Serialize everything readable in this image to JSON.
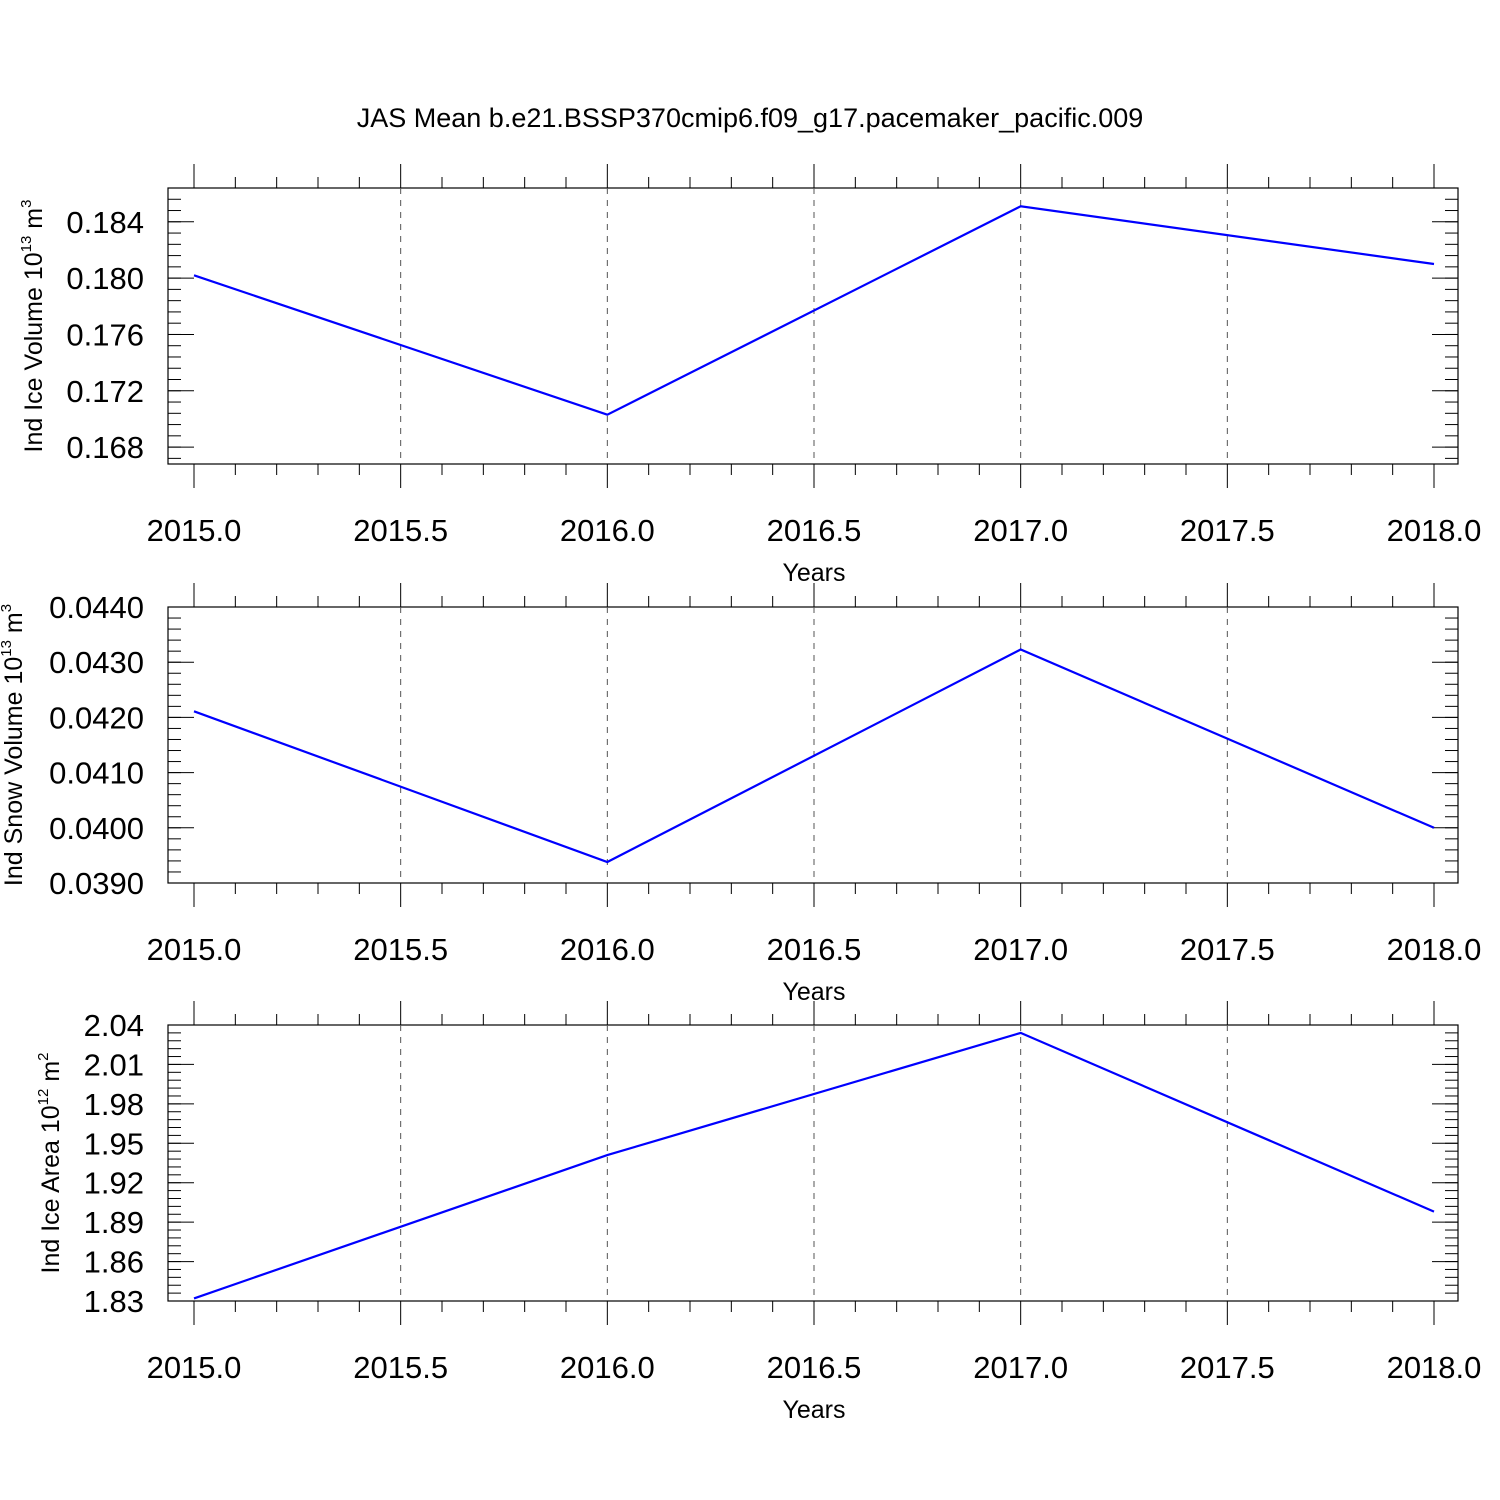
{
  "title": "JAS Mean b.e21.BSSP370cmip6.f09_g17.pacemaker_pacific.009",
  "colors": {
    "line": "#0000ff",
    "axis": "#000000",
    "grid": "#555555"
  },
  "chart_data": [
    {
      "type": "line",
      "xlabel": "Years",
      "ylabel": {
        "text": "Ind Ice Volume 10",
        "sup": "13",
        "unit": " m",
        "unit_sup": "3"
      },
      "x": [
        2015,
        2016,
        2017,
        2018
      ],
      "series": [
        {
          "values": [
            0.1802,
            0.1703,
            0.1851,
            0.181
          ]
        }
      ],
      "xlim": [
        2015,
        2018
      ],
      "ylim": [
        0.1668,
        0.1864
      ],
      "xticks": [
        "2015.0",
        "2015.5",
        "2016.0",
        "2016.5",
        "2017.0",
        "2017.5",
        "2018.0"
      ],
      "yticks": [
        "0.168",
        "0.172",
        "0.176",
        "0.180",
        "0.184"
      ],
      "grid": "vertical dashed"
    },
    {
      "type": "line",
      "xlabel": "Years",
      "ylabel": {
        "text": "Ind Snow Volume 10",
        "sup": "13",
        "unit": " m",
        "unit_sup": "3"
      },
      "x": [
        2015,
        2016,
        2017,
        2018
      ],
      "series": [
        {
          "values": [
            0.04211,
            0.03938,
            0.04323,
            0.04
          ]
        }
      ],
      "xlim": [
        2015,
        2018
      ],
      "ylim": [
        0.039,
        0.044
      ],
      "xticks": [
        "2015.0",
        "2015.5",
        "2016.0",
        "2016.5",
        "2017.0",
        "2017.5",
        "2018.0"
      ],
      "yticks": [
        "0.0390",
        "0.0400",
        "0.0410",
        "0.0420",
        "0.0430",
        "0.0440"
      ],
      "grid": "vertical dashed"
    },
    {
      "type": "line",
      "xlabel": "Years",
      "ylabel": {
        "text": "Ind Ice Area 10",
        "sup": "12",
        "unit": " m",
        "unit_sup": "2"
      },
      "x": [
        2015,
        2016,
        2017,
        2018
      ],
      "series": [
        {
          "values": [
            1.832,
            1.941,
            2.034,
            1.898
          ]
        }
      ],
      "xlim": [
        2015,
        2018
      ],
      "ylim": [
        1.83,
        2.04
      ],
      "xticks": [
        "2015.0",
        "2015.5",
        "2016.0",
        "2016.5",
        "2017.0",
        "2017.5",
        "2018.0"
      ],
      "yticks": [
        "1.83",
        "1.86",
        "1.89",
        "1.92",
        "1.95",
        "1.98",
        "2.01",
        "2.04"
      ],
      "grid": "vertical dashed"
    }
  ]
}
